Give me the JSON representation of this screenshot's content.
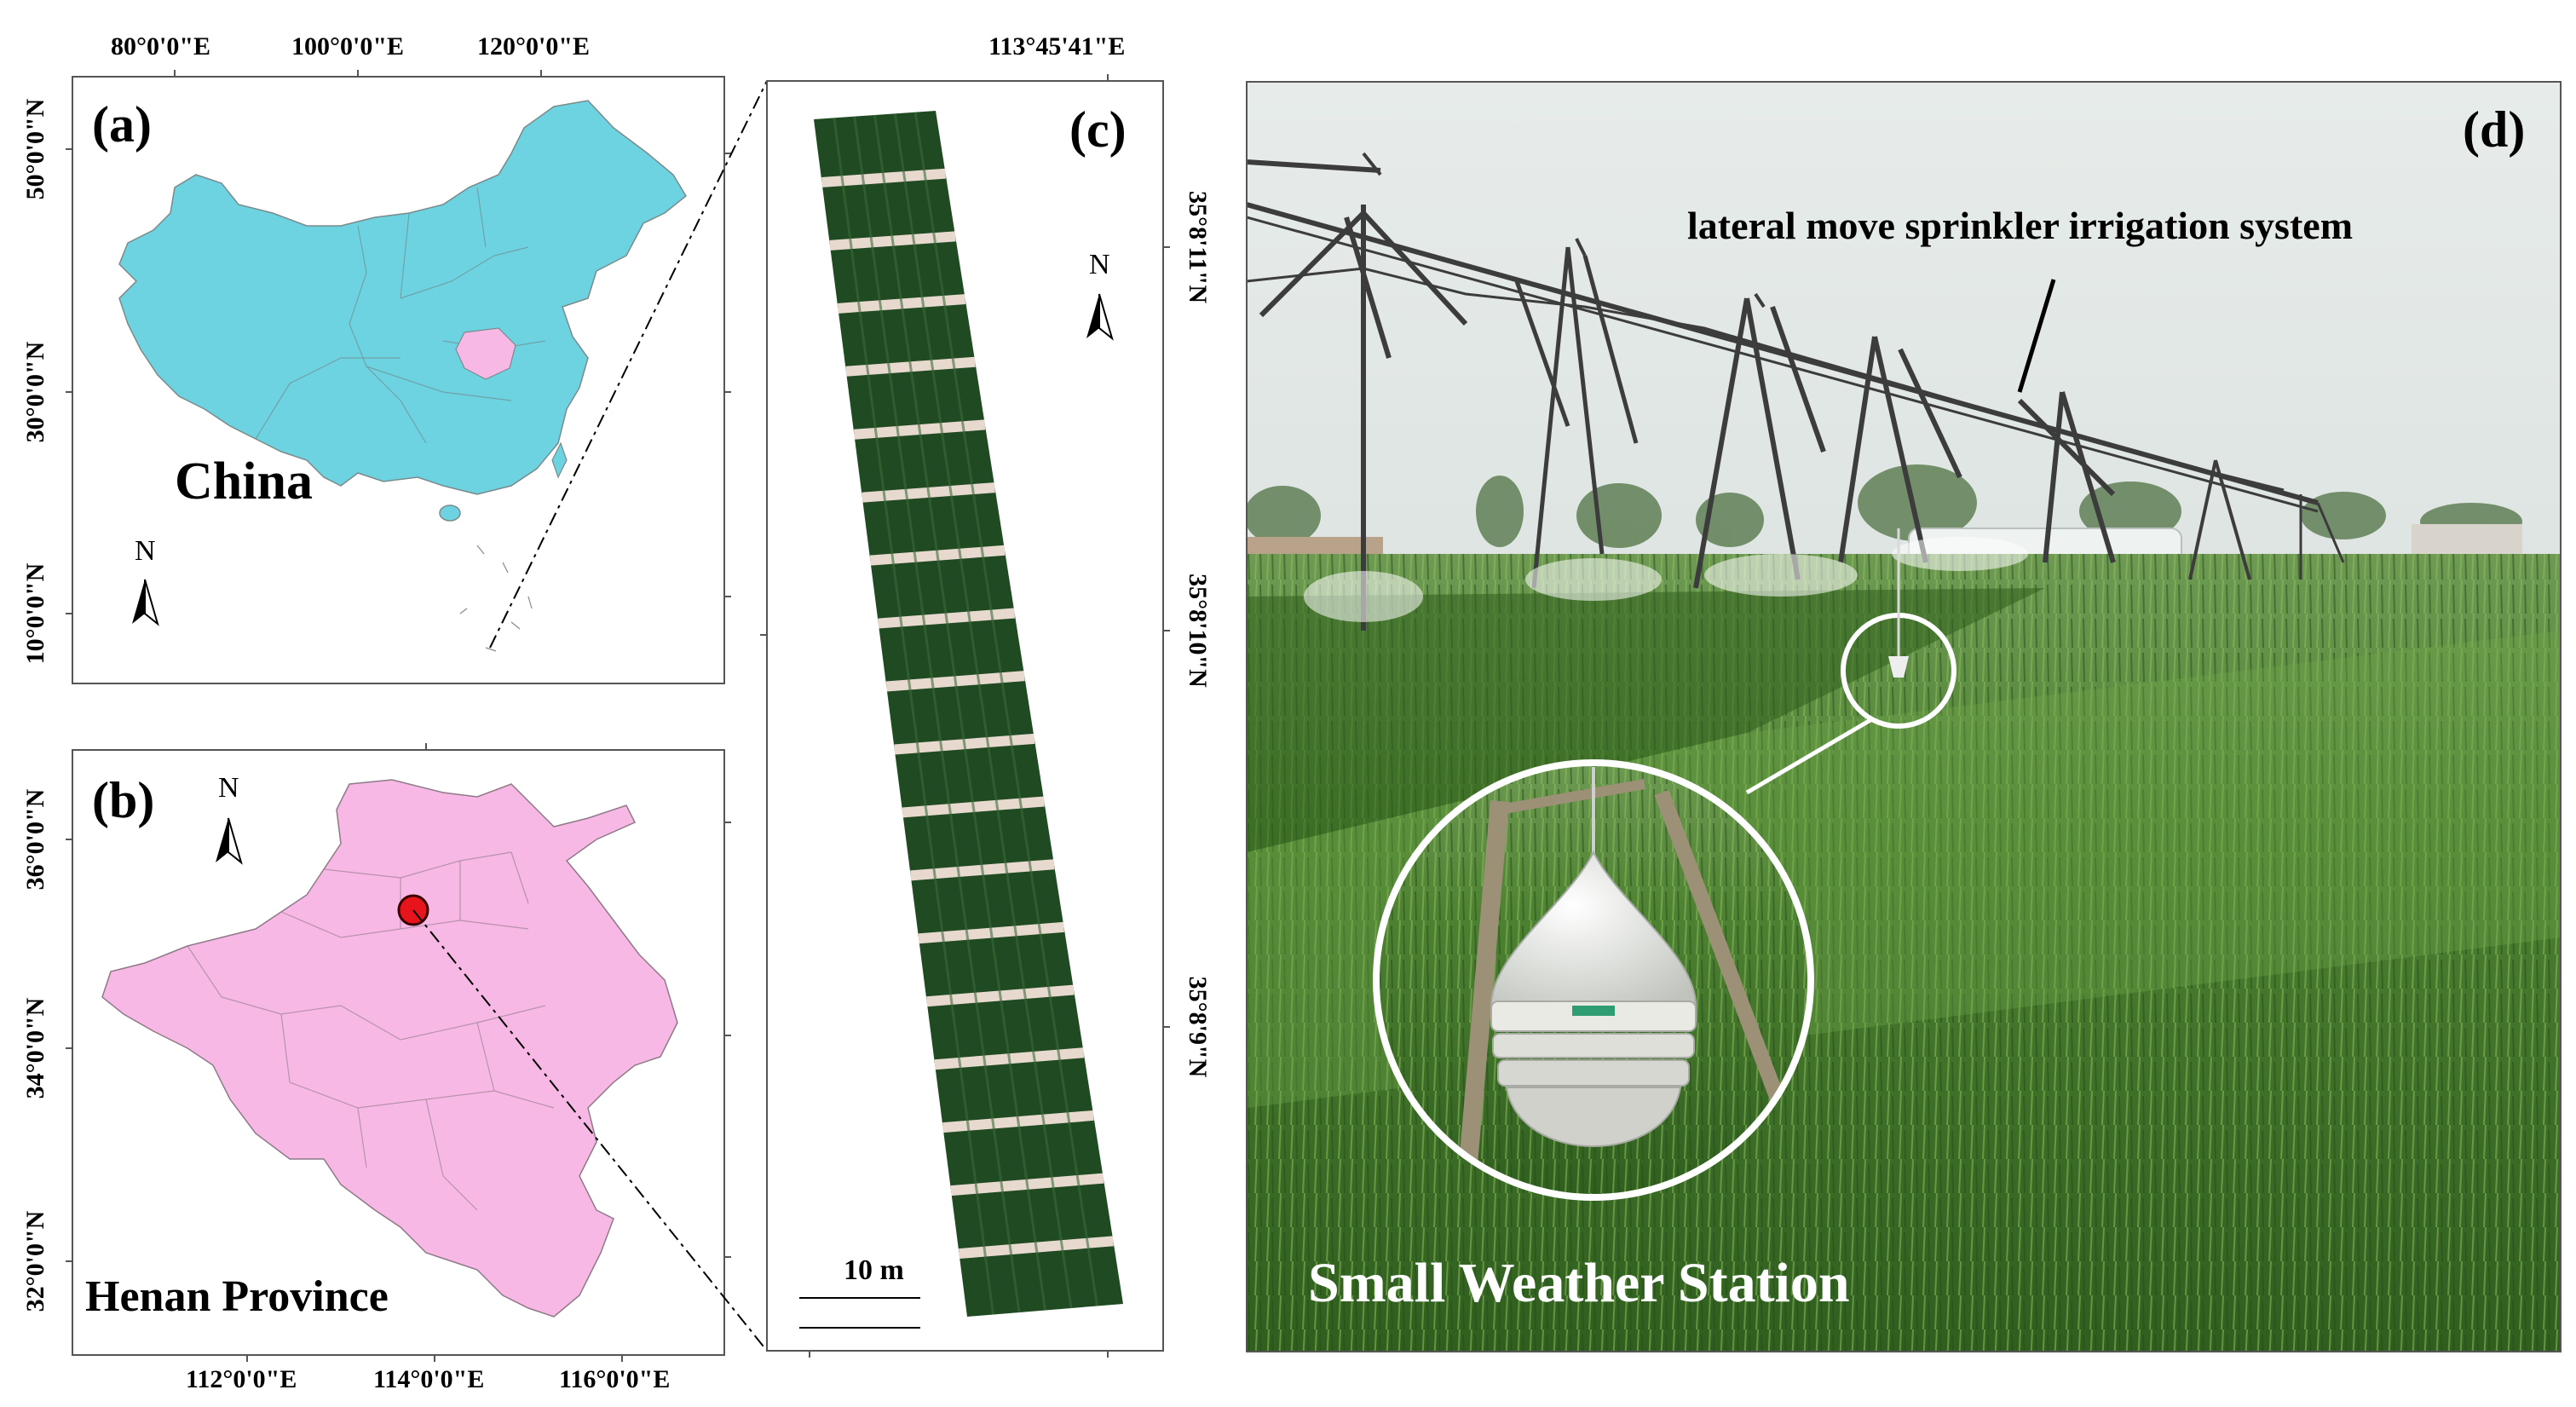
{
  "panel_a": {
    "label": "(a)",
    "country_label": "China",
    "north": "N",
    "top_ticks": [
      "80°0'0\"E",
      "100°0'0\"E",
      "120°0'0\"E"
    ],
    "left_ticks": [
      "50°0'0\"N",
      "30°0'0\"N",
      "10°0'0\"N"
    ],
    "colors": {
      "country": "#6ED3E0",
      "highlight": "#F7B8E6"
    }
  },
  "panel_b": {
    "label": "(b)",
    "province_label": "Henan Province",
    "north": "N",
    "bottom_ticks": [
      "112°0'0\"E",
      "114°0'0\"E",
      "116°0'0\"E"
    ],
    "left_ticks": [
      "36°0'0\"N",
      "34°0'0\"N",
      "32°0'0\"N"
    ],
    "colors": {
      "province": "#F7B8E6",
      "site": "#E8141B"
    }
  },
  "panel_c": {
    "label": "(c)",
    "north": "N",
    "top_tick": "113°45'41\"E",
    "right_ticks": [
      "35°8'11\"N",
      "35°8'10\"N",
      "35°8'9\"N"
    ],
    "scale_label": "10 m",
    "colors": {
      "crop": "#1F4A22",
      "path": "#E8D9CF"
    }
  },
  "panel_d": {
    "label": "(d)",
    "system_label": "lateral move sprinkler irrigation system",
    "station_label": "Small Weather Station",
    "colors": {
      "sky": "#D9E0DF",
      "field": "#3F7A2B"
    }
  }
}
